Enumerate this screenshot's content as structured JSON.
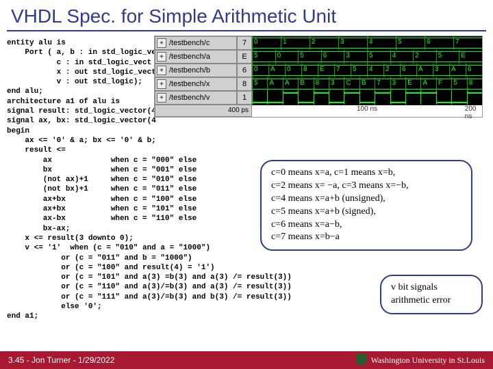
{
  "title": "VHDL Spec. for Simple Arithmetic Unit",
  "code": "entity alu is\n    Port ( a, b : in std_logic_ve\n           c : in std_logic_vect\n           x : out std_logic_vect\n           v : out std_logic);\nend alu;\narchitecture a1 of alu is\nsignal result: std_logic_vector(4\nsignal ax, bx: std_logic_vector(4\nbegin\n    ax <= '0' & a; bx <= '0' & b;\n    result <=\n        ax             when c = \"000\" else\n        bx             when c = \"001\" else\n        (not ax)+1     when c = \"010\" else\n        (not bx)+1     when c = \"011\" else\n        ax+bx          when c = \"100\" else\n        ax+bx          when c = \"101\" else\n        ax-bx          when c = \"110\" else\n        bx-ax;\n    x <= result(3 downto 0);\n    v <= '1'  when (c = \"010\" and a = \"1000\")\n            or (c = \"011\" and b = \"1000\")\n            or (c = \"100\" and result(4) = '1')\n            or (c = \"101\" and a(3) =b(3) and a(3) /= result(3))\n            or (c = \"110\" and a(3)/=b(3) and a(3) /= result(3))\n            or (c = \"111\" and a(3)/=b(3) and b(3) /= result(3))\n            else '0';\nend a1;",
  "waveform": {
    "signals": [
      {
        "name": "/testbench/c",
        "value": "7",
        "segments": [
          "0",
          "1",
          "2",
          "3",
          "4",
          "5",
          "6",
          "7"
        ]
      },
      {
        "name": "/testbench/a",
        "value": "E",
        "segments": [
          "5",
          "0",
          "5",
          "6",
          "3",
          "5",
          "4",
          "2",
          "5",
          "E"
        ]
      },
      {
        "name": "/testbench/b",
        "value": "6",
        "segments": [
          "0",
          "A",
          "0",
          "8",
          "E",
          "7",
          "5",
          "4",
          "2",
          "6",
          "A",
          "3",
          "A",
          "6"
        ]
      },
      {
        "name": "/testbench/x",
        "value": "8",
        "segments": [
          "5",
          "A",
          "A",
          "B",
          "8",
          "3",
          "C",
          "B",
          "7",
          "3",
          "E",
          "A",
          "F",
          "5",
          "8"
        ]
      },
      {
        "name": "/testbench/v",
        "value": "1",
        "digital": [
          0,
          0,
          1,
          0,
          1,
          0,
          1,
          0,
          1,
          0,
          1,
          1,
          0,
          0,
          1
        ]
      }
    ],
    "time_current": "400 ps",
    "ticks": [
      {
        "pos": 50,
        "label": "100 ns"
      },
      {
        "pos": 95,
        "label": "200 ns"
      }
    ]
  },
  "callout1_lines": [
    "c=0 means x=a,   c=1 means x=b,",
    "c=2 means x= −a,  c=3 means x=−b,",
    "c=4 means x=a+b (unsigned),",
    "c=5 means x=a+b (signed),",
    "c=6 means x=a−b,",
    "c=7 means x=b−a"
  ],
  "callout2_lines": [
    "v bit signals",
    "arithmetic error"
  ],
  "footer": {
    "left": "3.45 - Jon Turner - 1/29/2022",
    "right": "Washington University in St.Louis"
  }
}
